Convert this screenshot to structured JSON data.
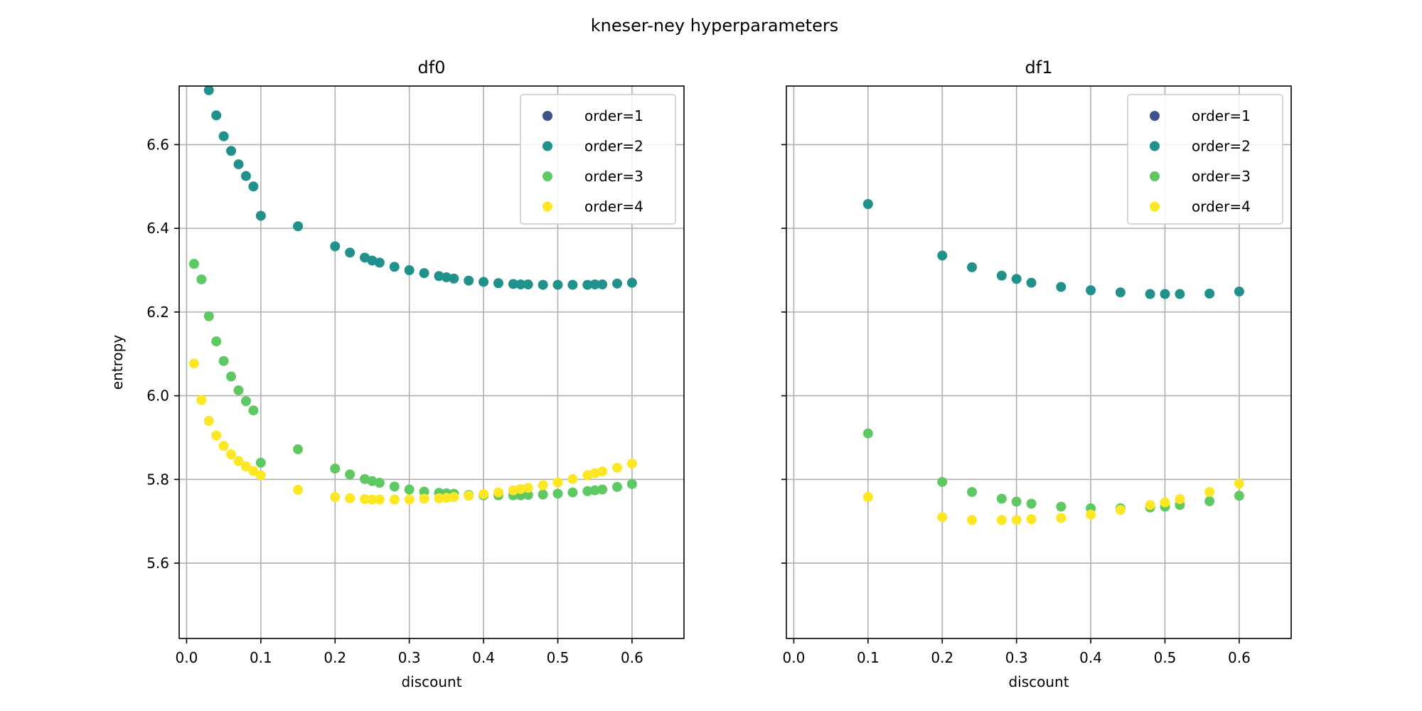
{
  "title": "kneser-ney hyperparameters",
  "chart_data": [
    {
      "type": "scatter",
      "title": "df0",
      "xlabel": "discount",
      "ylabel": "entropy",
      "xlim": [
        -0.01,
        0.67
      ],
      "ylim": [
        5.42,
        6.74
      ],
      "xticks": [
        "0.0",
        "0.1",
        "0.2",
        "0.3",
        "0.4",
        "0.5",
        "0.6"
      ],
      "yticks": [
        "5.6",
        "5.8",
        "6.0",
        "6.2",
        "6.4",
        "6.6"
      ],
      "grid": true,
      "legend_position": "top-right",
      "series": [
        {
          "name": "order=1",
          "color": "#3b528b",
          "points": []
        },
        {
          "name": "order=2",
          "color": "#21918c",
          "points": [
            [
              0.03,
              6.73
            ],
            [
              0.04,
              6.67
            ],
            [
              0.05,
              6.62
            ],
            [
              0.06,
              6.585
            ],
            [
              0.07,
              6.553
            ],
            [
              0.08,
              6.525
            ],
            [
              0.09,
              6.5
            ],
            [
              0.1,
              6.43
            ],
            [
              0.15,
              6.405
            ],
            [
              0.2,
              6.357
            ],
            [
              0.22,
              6.342
            ],
            [
              0.24,
              6.33
            ],
            [
              0.25,
              6.323
            ],
            [
              0.26,
              6.318
            ],
            [
              0.28,
              6.308
            ],
            [
              0.3,
              6.3
            ],
            [
              0.32,
              6.293
            ],
            [
              0.34,
              6.286
            ],
            [
              0.35,
              6.283
            ],
            [
              0.36,
              6.28
            ],
            [
              0.38,
              6.275
            ],
            [
              0.4,
              6.272
            ],
            [
              0.42,
              6.269
            ],
            [
              0.44,
              6.267
            ],
            [
              0.45,
              6.266
            ],
            [
              0.46,
              6.266
            ],
            [
              0.48,
              6.265
            ],
            [
              0.5,
              6.265
            ],
            [
              0.52,
              6.265
            ],
            [
              0.54,
              6.265
            ],
            [
              0.55,
              6.266
            ],
            [
              0.56,
              6.266
            ],
            [
              0.58,
              6.268
            ],
            [
              0.6,
              6.27
            ]
          ]
        },
        {
          "name": "order=3",
          "color": "#5ec962",
          "points": [
            [
              0.01,
              6.315
            ],
            [
              0.02,
              6.278
            ],
            [
              0.03,
              6.19
            ],
            [
              0.04,
              6.13
            ],
            [
              0.05,
              6.083
            ],
            [
              0.06,
              6.046
            ],
            [
              0.07,
              6.013
            ],
            [
              0.08,
              5.987
            ],
            [
              0.09,
              5.965
            ],
            [
              0.1,
              5.84
            ],
            [
              0.15,
              5.872
            ],
            [
              0.2,
              5.826
            ],
            [
              0.22,
              5.812
            ],
            [
              0.24,
              5.801
            ],
            [
              0.25,
              5.796
            ],
            [
              0.26,
              5.792
            ],
            [
              0.28,
              5.783
            ],
            [
              0.3,
              5.776
            ],
            [
              0.32,
              5.771
            ],
            [
              0.34,
              5.768
            ],
            [
              0.35,
              5.767
            ],
            [
              0.36,
              5.766
            ],
            [
              0.38,
              5.763
            ],
            [
              0.4,
              5.762
            ],
            [
              0.42,
              5.762
            ],
            [
              0.44,
              5.762
            ],
            [
              0.45,
              5.762
            ],
            [
              0.46,
              5.763
            ],
            [
              0.48,
              5.764
            ],
            [
              0.5,
              5.766
            ],
            [
              0.52,
              5.769
            ],
            [
              0.54,
              5.772
            ],
            [
              0.55,
              5.774
            ],
            [
              0.56,
              5.776
            ],
            [
              0.58,
              5.782
            ],
            [
              0.6,
              5.789
            ]
          ]
        },
        {
          "name": "order=4",
          "color": "#fde725",
          "points": [
            [
              0.01,
              6.077
            ],
            [
              0.02,
              5.99
            ],
            [
              0.03,
              5.94
            ],
            [
              0.04,
              5.905
            ],
            [
              0.05,
              5.88
            ],
            [
              0.06,
              5.86
            ],
            [
              0.07,
              5.844
            ],
            [
              0.08,
              5.831
            ],
            [
              0.09,
              5.82
            ],
            [
              0.1,
              5.81
            ],
            [
              0.15,
              5.775
            ],
            [
              0.2,
              5.758
            ],
            [
              0.22,
              5.755
            ],
            [
              0.24,
              5.753
            ],
            [
              0.25,
              5.752
            ],
            [
              0.26,
              5.752
            ],
            [
              0.28,
              5.752
            ],
            [
              0.3,
              5.752
            ],
            [
              0.32,
              5.754
            ],
            [
              0.34,
              5.755
            ],
            [
              0.35,
              5.756
            ],
            [
              0.36,
              5.758
            ],
            [
              0.38,
              5.761
            ],
            [
              0.4,
              5.765
            ],
            [
              0.42,
              5.769
            ],
            [
              0.44,
              5.774
            ],
            [
              0.45,
              5.777
            ],
            [
              0.46,
              5.78
            ],
            [
              0.48,
              5.786
            ],
            [
              0.5,
              5.793
            ],
            [
              0.52,
              5.801
            ],
            [
              0.54,
              5.81
            ],
            [
              0.55,
              5.815
            ],
            [
              0.56,
              5.819
            ],
            [
              0.58,
              5.828
            ],
            [
              0.6,
              5.838
            ]
          ]
        }
      ]
    },
    {
      "type": "scatter",
      "title": "df1",
      "xlabel": "discount",
      "ylabel": "",
      "xlim": [
        -0.01,
        0.67
      ],
      "ylim": [
        5.42,
        6.74
      ],
      "xticks": [
        "0.0",
        "0.1",
        "0.2",
        "0.3",
        "0.4",
        "0.5",
        "0.6"
      ],
      "yticks": [],
      "grid": true,
      "legend_position": "top-right",
      "series": [
        {
          "name": "order=1",
          "color": "#3b528b",
          "points": []
        },
        {
          "name": "order=2",
          "color": "#21918c",
          "points": [
            [
              0.1,
              6.458
            ],
            [
              0.2,
              6.335
            ],
            [
              0.24,
              6.307
            ],
            [
              0.28,
              6.287
            ],
            [
              0.3,
              6.279
            ],
            [
              0.32,
              6.27
            ],
            [
              0.36,
              6.26
            ],
            [
              0.4,
              6.252
            ],
            [
              0.44,
              6.247
            ],
            [
              0.48,
              6.243
            ],
            [
              0.5,
              6.243
            ],
            [
              0.52,
              6.243
            ],
            [
              0.56,
              6.244
            ],
            [
              0.6,
              6.249
            ]
          ]
        },
        {
          "name": "order=3",
          "color": "#5ec962",
          "points": [
            [
              0.1,
              5.91
            ],
            [
              0.2,
              5.794
            ],
            [
              0.24,
              5.77
            ],
            [
              0.28,
              5.754
            ],
            [
              0.3,
              5.747
            ],
            [
              0.32,
              5.742
            ],
            [
              0.36,
              5.735
            ],
            [
              0.4,
              5.731
            ],
            [
              0.44,
              5.731
            ],
            [
              0.48,
              5.733
            ],
            [
              0.5,
              5.735
            ],
            [
              0.52,
              5.739
            ],
            [
              0.56,
              5.748
            ],
            [
              0.6,
              5.761
            ]
          ]
        },
        {
          "name": "order=4",
          "color": "#fde725",
          "points": [
            [
              0.1,
              5.758
            ],
            [
              0.2,
              5.71
            ],
            [
              0.24,
              5.703
            ],
            [
              0.28,
              5.703
            ],
            [
              0.3,
              5.703
            ],
            [
              0.32,
              5.705
            ],
            [
              0.36,
              5.708
            ],
            [
              0.4,
              5.716
            ],
            [
              0.44,
              5.727
            ],
            [
              0.48,
              5.739
            ],
            [
              0.5,
              5.745
            ],
            [
              0.52,
              5.753
            ],
            [
              0.56,
              5.77
            ],
            [
              0.6,
              5.79
            ]
          ]
        }
      ]
    }
  ]
}
